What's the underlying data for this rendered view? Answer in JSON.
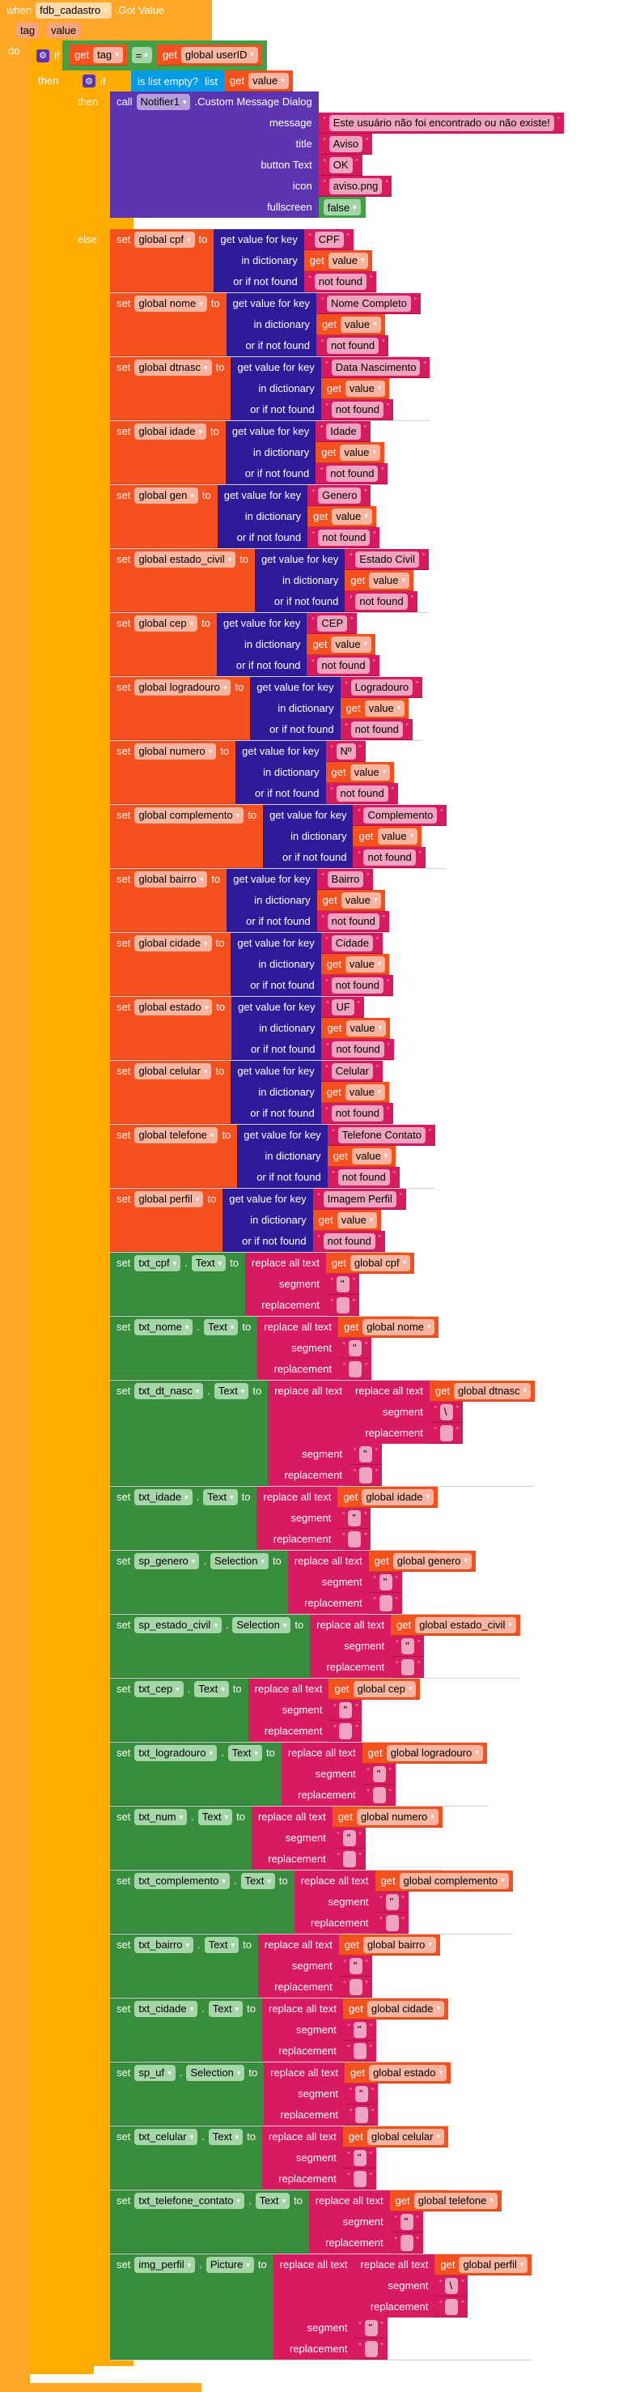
{
  "event": {
    "keyword": "when",
    "component": "fdb_cadastro",
    "event_name": ".Got Value",
    "params": [
      "tag",
      "value"
    ],
    "do_label": "do"
  },
  "outer_if": {
    "if_label": "if",
    "then_label": "then",
    "condition": {
      "left_get": "get",
      "left_var": "tag",
      "op": "=",
      "right_get": "get",
      "right_var": "global userID"
    }
  },
  "inner_if": {
    "if_label": "if",
    "then_label": "then",
    "else_label": "else",
    "condition": {
      "label": "is list empty?",
      "list_label": "list",
      "get": "get",
      "var": "value"
    }
  },
  "notifier": {
    "call": "call",
    "component": "Notifier1",
    "method": ".Custom Message Dialog",
    "args": [
      {
        "label": "message",
        "value": "Este usuário não foi encontrado ou não existe!"
      },
      {
        "label": "title",
        "value": "Aviso"
      },
      {
        "label": "button Text",
        "value": "OK"
      },
      {
        "label": "icon",
        "value": "aviso.png"
      },
      {
        "label": "fullscreen",
        "value": "false",
        "type": "bool"
      }
    ]
  },
  "labels": {
    "set": "set",
    "to": "to",
    "dot": ".",
    "get": "get",
    "get_value_for_key": "get value for key",
    "in_dictionary": "in dictionary",
    "or_if_not_found": "or if not found",
    "replace_all_text": "replace all text",
    "segment": "segment",
    "replacement": "replacement"
  },
  "dict_sets": [
    {
      "var": "global cpf",
      "key": "CPF",
      "dict": "value",
      "default": "not found"
    },
    {
      "var": "global nome",
      "key": "Nome Completo",
      "dict": "value",
      "default": "not found"
    },
    {
      "var": "global dtnasc",
      "key": "Data Nascimento",
      "dict": "value",
      "default": "not found"
    },
    {
      "var": "global idade",
      "key": "Idade",
      "dict": "value",
      "default": "not found"
    },
    {
      "var": "global gen",
      "key": "Genero",
      "dict": "value",
      "default": "not found"
    },
    {
      "var": "global estado_civil",
      "key": "Estado Civil",
      "dict": "value",
      "default": "not found"
    },
    {
      "var": "global cep",
      "key": "CEP",
      "dict": "value",
      "default": "not found"
    },
    {
      "var": "global logradouro",
      "key": "Logradouro",
      "dict": "value",
      "default": "not found"
    },
    {
      "var": "global numero",
      "key": "Nº",
      "dict": "value",
      "default": "not found"
    },
    {
      "var": "global complemento",
      "key": "Complemento",
      "dict": "value",
      "default": "not found"
    },
    {
      "var": "global bairro",
      "key": "Bairro",
      "dict": "value",
      "default": "not found"
    },
    {
      "var": "global cidade",
      "key": "Cidade",
      "dict": "value",
      "default": "not found"
    },
    {
      "var": "global estado",
      "key": "UF",
      "dict": "value",
      "default": "not found"
    },
    {
      "var": "global celular",
      "key": "Celular",
      "dict": "value",
      "default": "not found"
    },
    {
      "var": "global telefone",
      "key": "Telefone Contato",
      "dict": "value",
      "default": "not found"
    },
    {
      "var": "global perfil",
      "key": "Imagem Perfil",
      "dict": "value",
      "default": "not found"
    }
  ],
  "text_sets": [
    {
      "component": "txt_cpf",
      "property": "Text",
      "var": "global cpf",
      "segment": "\"",
      "replacement": ""
    },
    {
      "component": "txt_nome",
      "property": "Text",
      "var": "global nome",
      "segment": "\"",
      "replacement": ""
    },
    {
      "component": "txt_dt_nasc",
      "property": "Text",
      "var": "global dtnasc",
      "segment": "\"",
      "replacement": "",
      "inner_segment": "\\",
      "inner_replacement": ""
    },
    {
      "component": "txt_idade",
      "property": "Text",
      "var": "global idade",
      "segment": "\"",
      "replacement": ""
    },
    {
      "component": "sp_genero",
      "property": "Selection",
      "var": "global genero",
      "segment": "\"",
      "replacement": ""
    },
    {
      "component": "sp_estado_civil",
      "property": "Selection",
      "var": "global estado_civil",
      "segment": "\"",
      "replacement": ""
    },
    {
      "component": "txt_cep",
      "property": "Text",
      "var": "global cep",
      "segment": "\"",
      "replacement": ""
    },
    {
      "component": "txt_logradouro",
      "property": "Text",
      "var": "global logradouro",
      "segment": "\"",
      "replacement": ""
    },
    {
      "component": "txt_num",
      "property": "Text",
      "var": "global numero",
      "segment": "\"",
      "replacement": ""
    },
    {
      "component": "txt_complemento",
      "property": "Text",
      "var": "global complemento",
      "segment": "\"",
      "replacement": ""
    },
    {
      "component": "txt_bairro",
      "property": "Text",
      "var": "global bairro",
      "segment": "\"",
      "replacement": ""
    },
    {
      "component": "txt_cidade",
      "property": "Text",
      "var": "global cidade",
      "segment": "\"",
      "replacement": ""
    },
    {
      "component": "sp_uf",
      "property": "Selection",
      "var": "global estado",
      "segment": "\"",
      "replacement": ""
    },
    {
      "component": "txt_celular",
      "property": "Text",
      "var": "global celular",
      "segment": "\"",
      "replacement": ""
    },
    {
      "component": "txt_telefone_contato",
      "property": "Text",
      "var": "global telefone",
      "segment": "\"",
      "replacement": ""
    },
    {
      "component": "img_perfil",
      "property": "Picture",
      "var": "global perfil",
      "segment": "\"",
      "replacement": "",
      "inner_segment": "\\",
      "inner_replacement": ""
    }
  ],
  "colors": {
    "event": "#FFA726",
    "control": "#FFAB00",
    "variable": "#F4511E",
    "dictionary": "#2D1B99",
    "text": "#D81B60",
    "component": "#388E3C",
    "notifier": "#5E35B1",
    "list": "#039BE5",
    "logic": "#43A047"
  }
}
